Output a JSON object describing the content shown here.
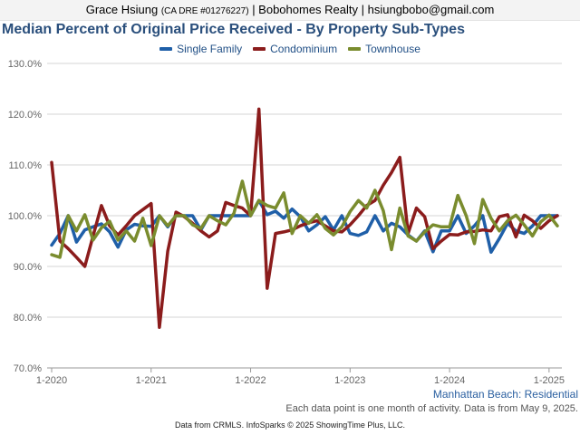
{
  "header": {
    "agent_name": "Grace Hsiung",
    "license": "(CA DRE #01276227)",
    "rest": "| Bobohomes Realty | hsiungbobo@gmail.com"
  },
  "chart_data": {
    "type": "line",
    "title": "Median Percent of Original Price Received - By Property Sub-Types",
    "xlabel": "",
    "ylabel": "",
    "ylim": [
      70,
      130
    ],
    "y_ticks": [
      70,
      80,
      90,
      100,
      110,
      120,
      130
    ],
    "y_tick_labels": [
      "70.0%",
      "80.0%",
      "90.0%",
      "100.0%",
      "110.0%",
      "120.0%",
      "130.0%"
    ],
    "x_ticks": [
      0,
      12,
      24,
      36,
      48,
      60
    ],
    "x_tick_labels": [
      "1-2020",
      "1-2021",
      "1-2022",
      "1-2023",
      "1-2024",
      "1-2025"
    ],
    "grid": true,
    "legend_position": "top-center",
    "series": [
      {
        "name": "Single Family",
        "color": "#1f5fa8",
        "values": [
          94.2,
          96.5,
          100.0,
          94.8,
          97.2,
          97.8,
          98.4,
          96.8,
          93.8,
          97.2,
          98.3,
          98.0,
          97.9,
          100.0,
          97.8,
          100.0,
          100.0,
          100.0,
          97.2,
          100.0,
          100.0,
          100.0,
          100.0,
          100.0,
          100.0,
          103.0,
          100.2,
          100.9,
          99.5,
          101.3,
          99.8,
          97.0,
          98.2,
          99.8,
          97.2,
          100.0,
          96.5,
          96.1,
          96.8,
          100.0,
          97.0,
          98.5,
          97.8,
          96.2,
          95.0,
          97.0,
          92.9,
          97.0,
          97.0,
          100.0,
          96.5,
          98.0,
          100.0,
          92.8,
          95.5,
          98.5,
          97.0,
          96.5,
          98.0,
          100.0,
          100.0,
          100.0
        ]
      },
      {
        "name": "Condominium",
        "color": "#8b1c1c",
        "values": [
          110.5,
          95.0,
          93.5,
          91.8,
          90.0,
          96.0,
          102.0,
          98.0,
          96.2,
          98.0,
          100.0,
          101.2,
          102.4,
          78.0,
          93.0,
          100.7,
          99.8,
          98.5,
          97.0,
          95.8,
          97.0,
          102.6,
          102.0,
          101.5,
          100.0,
          121.0,
          85.7,
          96.5,
          96.8,
          97.2,
          98.0,
          98.6,
          99.0,
          98.0,
          97.0,
          96.8,
          98.2,
          100.0,
          102.0,
          103.0,
          106.0,
          108.5,
          111.5,
          96.5,
          101.5,
          99.8,
          93.5,
          95.0,
          96.3,
          96.2,
          96.8,
          96.9,
          97.2,
          97.0,
          99.8,
          100.2,
          95.8,
          100.1,
          99.0,
          97.5,
          99.0,
          100.0
        ]
      },
      {
        "name": "Townhouse",
        "color": "#7a8c2e",
        "values": [
          92.3,
          91.8,
          100.0,
          97.0,
          100.2,
          95.2,
          97.6,
          98.9,
          95.2,
          97.0,
          95.0,
          99.5,
          94.1,
          100.0,
          98.0,
          100.0,
          100.0,
          98.2,
          97.5,
          100.0,
          99.0,
          98.2,
          100.5,
          106.8,
          100.0,
          103.0,
          102.0,
          101.5,
          104.5,
          96.5,
          100.0,
          98.5,
          100.2,
          97.5,
          96.2,
          97.8,
          100.8,
          103.0,
          101.5,
          105.0,
          101.0,
          93.3,
          101.5,
          96.0,
          95.0,
          96.8,
          98.2,
          97.8,
          97.8,
          104.0,
          100.0,
          94.5,
          103.2,
          99.5,
          97.0,
          99.0,
          100.1,
          98.2,
          96.0,
          98.8,
          100.1,
          98.0
        ]
      }
    ]
  },
  "location": "Manhattan Beach: Residential",
  "note": "Each data point is one month of activity. Data is from May 9, 2025.",
  "footer": "Data from CRMLS. InfoSparks © 2025 ShowingTime Plus, LLC."
}
